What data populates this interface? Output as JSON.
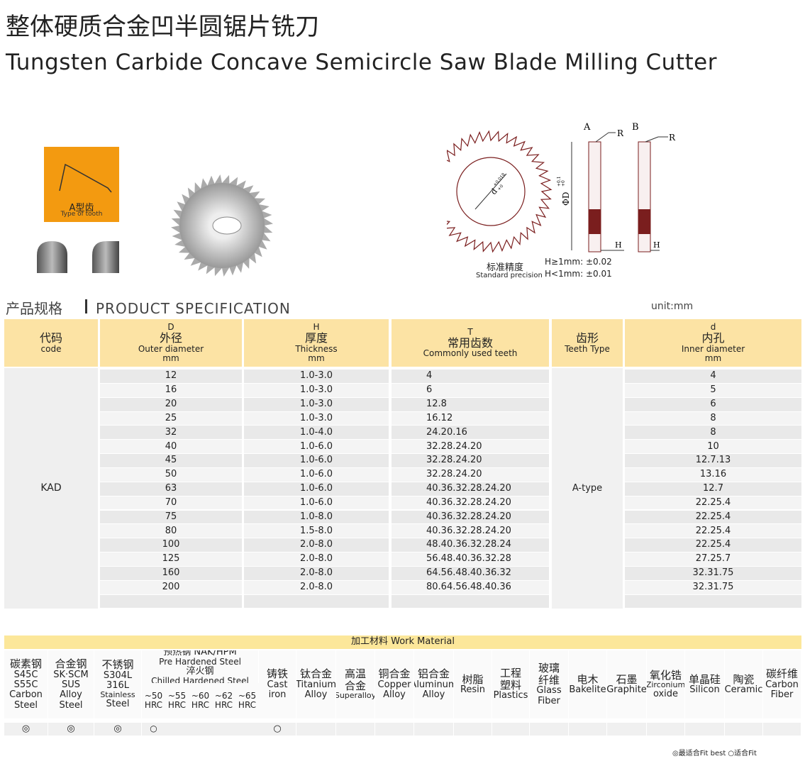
{
  "header": {
    "title_cn": "整体硬质合金凹半圆锯片铣刀",
    "title_en": "Tungsten Carbide Concave Semicircle Saw Blade Milling Cutter"
  },
  "tooth": {
    "label_cn": "A型齿",
    "label_en": "Type of tooth"
  },
  "diagram": {
    "view_a": "A",
    "view_b": "B",
    "radius_a": "R",
    "radius_b": "R",
    "outer": "ΦD",
    "outer_tol_up": "+0.1",
    "outer_tol_low": "+0",
    "inner": "d",
    "inner_tol_up": "+0.018",
    "inner_tol_low": "+0",
    "thick_a": "H",
    "thick_b": "H",
    "precision_cn": "标准精度",
    "precision_en": "Standard precision",
    "precision_1": "H≥1mm: ±0.02",
    "precision_2": "H<1mm: ±0.01"
  },
  "spec": {
    "heading_cn": "产品规格",
    "heading_en": "PRODUCT SPECIFICATION",
    "unit": "unit:mm"
  },
  "table": {
    "headers": [
      {
        "cn": "代码",
        "en": "code"
      },
      {
        "letter": "D",
        "cn": "外径",
        "en": "Outer diameter",
        "unit": "mm"
      },
      {
        "letter": "H",
        "cn": "厚度",
        "en": "Thickness",
        "unit": "mm"
      },
      {
        "letter": "T",
        "cn": "常用齿数",
        "en": "Commonly used teeth"
      },
      {
        "cn": "齿形",
        "en": "Teeth Type"
      },
      {
        "letter": "d",
        "cn": "内孔",
        "en": "Inner diameter",
        "unit": "mm"
      }
    ],
    "code": "KAD",
    "teeth_type": "A-type",
    "rows": [
      [
        "12",
        "1.0-3.0",
        "4",
        "4"
      ],
      [
        "16",
        "1.0-3.0",
        "6",
        "5"
      ],
      [
        "20",
        "1.0-3.0",
        "12.8",
        "6"
      ],
      [
        "25",
        "1.0-3.0",
        "16.12",
        "8"
      ],
      [
        "32",
        "1.0-4.0",
        "24.20.16",
        "8"
      ],
      [
        "40",
        "1.0-6.0",
        "32.28.24.20",
        "10"
      ],
      [
        "45",
        "1.0-6.0",
        "32.28.24.20",
        "12.7.13"
      ],
      [
        "50",
        "1.0-6.0",
        "32.28.24.20",
        "13.16"
      ],
      [
        "63",
        "1.0-6.0",
        "40.36.32.28.24.20",
        "12.7"
      ],
      [
        "70",
        "1.0-6.0",
        "40.36.32.28.24.20",
        "22.25.4"
      ],
      [
        "75",
        "1.0-8.0",
        "40.36.32.28.24.20",
        "22.25.4"
      ],
      [
        "80",
        "1.5-8.0",
        "40.36.32.28.24.20",
        "22.25.4"
      ],
      [
        "100",
        "2.0-8.0",
        "48.40.36.32.28.24",
        "22.25.4"
      ],
      [
        "125",
        "2.0-8.0",
        "56.48.40.36.32.28",
        "27.25.7"
      ],
      [
        "160",
        "2.0-8.0",
        "64.56.48.40.36.32",
        "32.31.75"
      ],
      [
        "200",
        "2.0-8.0",
        "80.64.56.48.40.36",
        "32.31.75"
      ]
    ]
  },
  "materials": {
    "title": "加工材料 Work Material",
    "columns": [
      {
        "lines": [
          "碳素钢",
          "S45C",
          "S55C",
          "Carbon",
          "Steel"
        ],
        "mark": "◎"
      },
      {
        "lines": [
          "合金钢",
          "SK·SCM",
          "SUS",
          "Alloy",
          "Steel"
        ],
        "mark": "◎"
      },
      {
        "lines": [
          "不锈钢",
          "S304L",
          "316L",
          "Stainless",
          "Steel"
        ],
        "mark": "◎"
      },
      {
        "lines": [
          "预热钢 NAK/HPM",
          "Pre Hardened Steel",
          "淬火钢",
          "Chilled Hardened Steel"
        ],
        "sub": [
          {
            "lines": [
              "~50",
              "HRC"
            ],
            "mark": "○"
          },
          {
            "lines": [
              "~55",
              "HRC"
            ]
          },
          {
            "lines": [
              "~60",
              "HRC"
            ]
          },
          {
            "lines": [
              "~62",
              "HRC"
            ]
          },
          {
            "lines": [
              "~65",
              "HRC"
            ]
          }
        ]
      },
      {
        "lines": [
          "铸铁",
          "Cast",
          "iron"
        ],
        "mark": "○"
      },
      {
        "lines": [
          "钛合金",
          "Titanium",
          "Alloy"
        ]
      },
      {
        "lines": [
          "高温",
          "合金",
          "Superalloy"
        ]
      },
      {
        "lines": [
          "铜合金",
          "Copper",
          "Alloy"
        ]
      },
      {
        "lines": [
          "铝合金",
          "Aluminum",
          "Alloy"
        ]
      },
      {
        "lines": [
          "树脂",
          "Resin"
        ]
      },
      {
        "lines": [
          "工程",
          "塑料",
          "Plastics"
        ]
      },
      {
        "lines": [
          "玻璃",
          "纤维",
          "Glass",
          "Fiber"
        ]
      },
      {
        "lines": [
          "电木",
          "Bakelite"
        ]
      },
      {
        "lines": [
          "石墨",
          "Graphite"
        ]
      },
      {
        "lines": [
          "氧化锆",
          "Zirconium",
          "oxide"
        ]
      },
      {
        "lines": [
          "单晶硅",
          "Silicon"
        ]
      },
      {
        "lines": [
          "陶瓷",
          "Ceramic"
        ]
      },
      {
        "lines": [
          "碳纤维",
          "Carbon",
          "Fiber"
        ]
      }
    ],
    "legend": "◎最适合Fit best ○适合Fit"
  }
}
